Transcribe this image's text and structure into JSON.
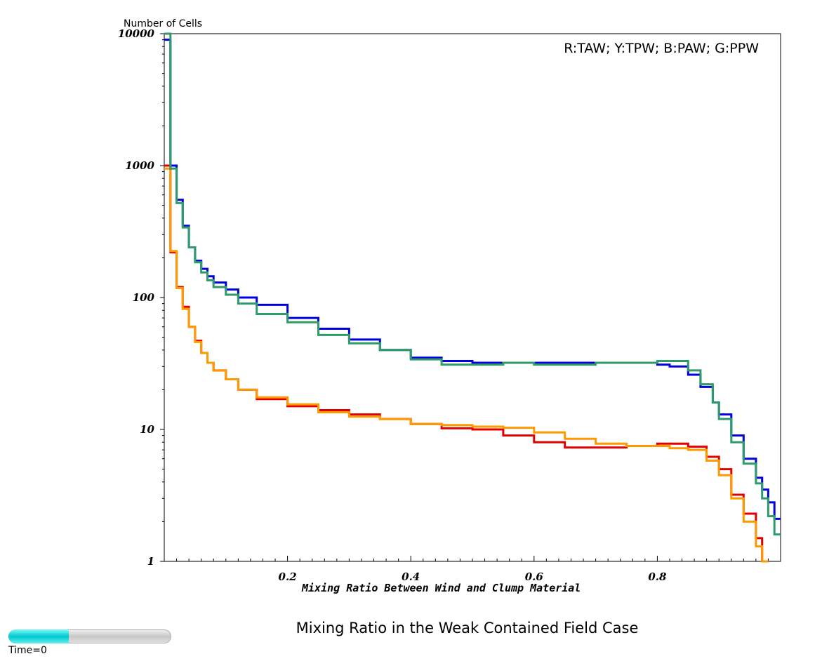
{
  "chart_data": {
    "type": "line",
    "title": "Mixing Ratio in the Weak Contained Field Case",
    "xlabel": "Mixing Ratio Between Wind and Clump Material",
    "ylabel": "Number of Cells",
    "legend_text": "R:TAW; Y:TPW; B:PAW; G:PPW",
    "y_scale": "log",
    "xlim": [
      0,
      1
    ],
    "ylim": [
      1,
      10000
    ],
    "x_ticks": [
      0.2,
      0.4,
      0.6,
      0.8
    ],
    "x_tick_labels": [
      "0.2",
      "0.4",
      "0.6",
      "0.8"
    ],
    "y_ticks": [
      1,
      10,
      100,
      1000,
      10000
    ],
    "y_tick_labels": [
      "1",
      "10",
      "100",
      "1000",
      "10000"
    ],
    "grid": false,
    "legend_position": "top-right",
    "series": [
      {
        "color": "#e00000",
        "x": [
          0.0,
          0.01,
          0.02,
          0.03,
          0.04,
          0.05,
          0.06,
          0.07,
          0.08,
          0.1,
          0.12,
          0.15,
          0.2,
          0.25,
          0.3,
          0.35,
          0.4,
          0.45,
          0.5,
          0.55,
          0.6,
          0.65,
          0.7,
          0.75,
          0.8,
          0.82,
          0.85,
          0.88,
          0.9,
          0.92,
          0.94,
          0.96,
          0.97
        ],
        "y": [
          1000,
          220,
          120,
          85,
          60,
          47,
          38,
          32,
          28,
          24,
          20,
          17,
          15,
          14,
          13,
          12,
          11,
          10.2,
          10,
          9,
          8,
          7.3,
          7.3,
          7.5,
          7.8,
          7.8,
          7.4,
          6.2,
          5,
          3.2,
          2.3,
          1.5,
          1.0
        ]
      },
      {
        "color": "#ff9900",
        "x": [
          0.0,
          0.01,
          0.02,
          0.03,
          0.04,
          0.05,
          0.06,
          0.07,
          0.08,
          0.1,
          0.12,
          0.15,
          0.2,
          0.25,
          0.3,
          0.35,
          0.4,
          0.45,
          0.5,
          0.55,
          0.6,
          0.65,
          0.7,
          0.75,
          0.8,
          0.82,
          0.85,
          0.88,
          0.9,
          0.92,
          0.94,
          0.96,
          0.97
        ],
        "y": [
          950,
          225,
          118,
          82,
          60,
          46,
          38,
          32,
          28,
          24,
          20,
          17.5,
          15.5,
          13.5,
          12.5,
          12,
          11,
          10.8,
          10.5,
          10.3,
          9.5,
          8.5,
          7.8,
          7.5,
          7.5,
          7.2,
          7,
          5.8,
          4.5,
          3.0,
          2.0,
          1.3,
          1.0
        ]
      },
      {
        "color": "#0000e0",
        "x": [
          0.0,
          0.01,
          0.02,
          0.03,
          0.04,
          0.05,
          0.06,
          0.07,
          0.08,
          0.1,
          0.12,
          0.15,
          0.2,
          0.25,
          0.3,
          0.35,
          0.4,
          0.45,
          0.5,
          0.55,
          0.6,
          0.65,
          0.7,
          0.75,
          0.8,
          0.82,
          0.85,
          0.87,
          0.89,
          0.9,
          0.92,
          0.94,
          0.96,
          0.97,
          0.98,
          0.99
        ],
        "y": [
          9000,
          1000,
          550,
          350,
          240,
          190,
          165,
          145,
          130,
          115,
          100,
          88,
          70,
          58,
          48,
          40,
          35,
          33,
          32,
          32,
          32,
          32,
          32,
          32,
          31,
          30,
          26,
          21,
          16,
          13,
          9,
          6,
          4.3,
          3.5,
          2.8,
          2.1
        ]
      },
      {
        "color": "#2e9b6a",
        "x": [
          0.0,
          0.01,
          0.02,
          0.03,
          0.04,
          0.05,
          0.06,
          0.07,
          0.08,
          0.1,
          0.12,
          0.15,
          0.2,
          0.25,
          0.3,
          0.35,
          0.4,
          0.45,
          0.5,
          0.55,
          0.6,
          0.65,
          0.7,
          0.75,
          0.8,
          0.82,
          0.85,
          0.87,
          0.89,
          0.9,
          0.92,
          0.94,
          0.96,
          0.97,
          0.98,
          0.99
        ],
        "y": [
          10000,
          950,
          520,
          340,
          240,
          185,
          155,
          135,
          120,
          105,
          90,
          75,
          65,
          52,
          45,
          40,
          34,
          31,
          31,
          32,
          31,
          31,
          32,
          32,
          33,
          33,
          28,
          22,
          16,
          12,
          8,
          5.5,
          3.9,
          3.0,
          2.2,
          1.6
        ]
      }
    ]
  },
  "time_slider": {
    "label": "Time=0",
    "fraction": 0.37
  }
}
